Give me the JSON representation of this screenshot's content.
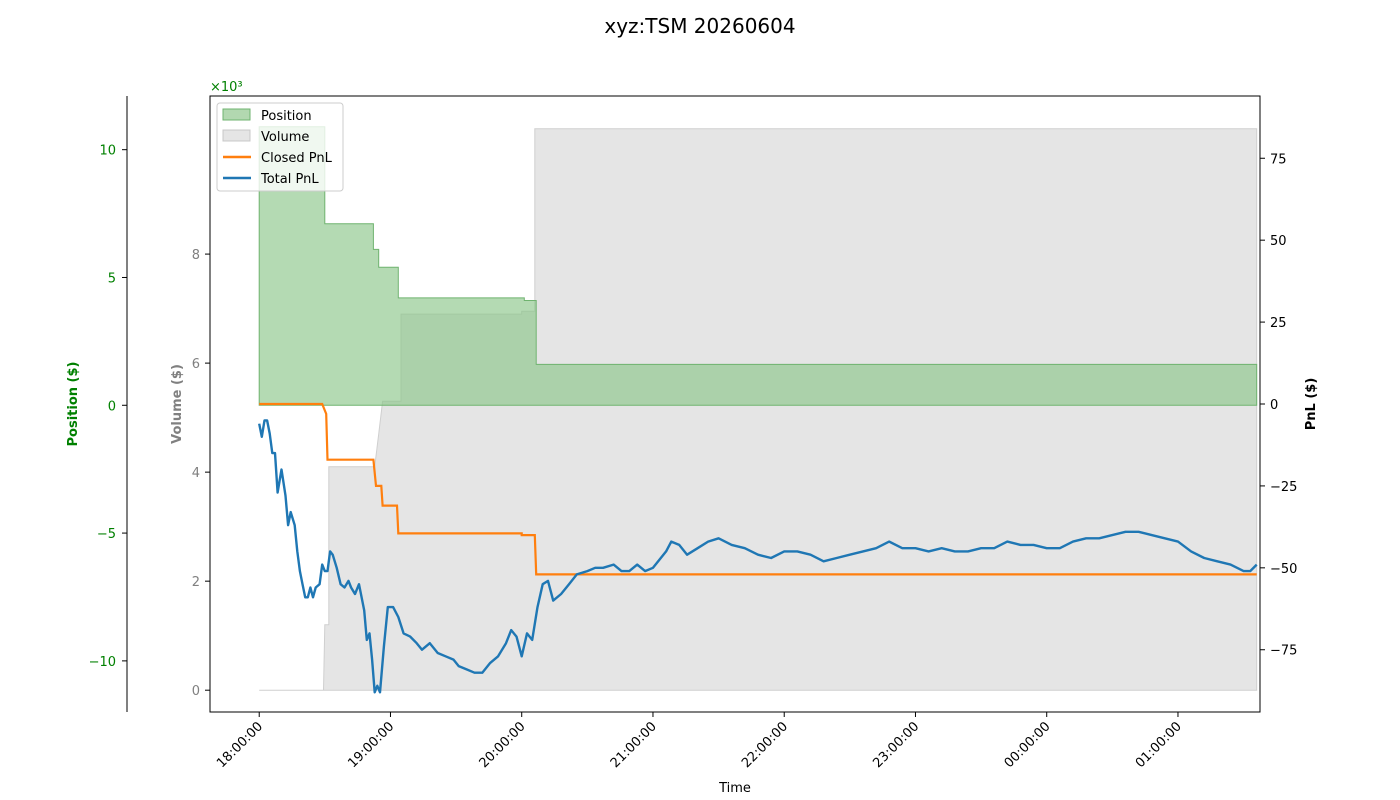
{
  "chart_data": {
    "type": "area",
    "title": "xyz:TSM 20260604",
    "xlabel": "Time",
    "x_ticks": [
      "18:00:00",
      "19:00:00",
      "20:00:00",
      "21:00:00",
      "22:00:00",
      "23:00:00",
      "00:00:00",
      "01:00:00"
    ],
    "x_range_hours": [
      -0.375,
      7.625
    ],
    "axes": {
      "position": {
        "label": "Position ($)",
        "color": "#008000",
        "ylim": [
          -12.0,
          12.1
        ],
        "ticks": [
          -10,
          -5,
          0,
          5,
          10
        ],
        "tick_labels": [
          "−10",
          "−5",
          "0",
          "5",
          "10"
        ]
      },
      "volume": {
        "label": "Volume ($)",
        "color": "#808080",
        "ylim": [
          -0.4,
          10.9
        ],
        "offset_label": "×10³",
        "ticks": [
          0,
          2,
          4,
          6,
          8
        ],
        "tick_labels": [
          "0",
          "2",
          "4",
          "6",
          "8"
        ]
      },
      "pnl": {
        "label": "PnL ($)",
        "color": "#000000",
        "ylim": [
          -94,
          94
        ],
        "ticks": [
          -75,
          -50,
          -25,
          0,
          25,
          50,
          75
        ],
        "tick_labels": [
          "−75",
          "−50",
          "−25",
          "0",
          "25",
          "50",
          "75"
        ]
      }
    },
    "legend": {
      "placement": "top-left",
      "entries": [
        {
          "name": "Position",
          "kind": "patch",
          "color": "#b2d8b0",
          "edge": "#6fb36f"
        },
        {
          "name": "Volume",
          "kind": "patch",
          "color": "#e5e5e5",
          "edge": "#c8c8c8"
        },
        {
          "name": "Closed PnL",
          "kind": "line",
          "color": "#ff7f0e"
        },
        {
          "name": "Total PnL",
          "kind": "line",
          "color": "#1f77b4"
        }
      ]
    },
    "series": [
      {
        "name": "Position",
        "axis": "position",
        "color": "#8cc68a",
        "step": true,
        "points": [
          [
            0.0,
            0.0
          ],
          [
            0.0,
            10.9
          ],
          [
            0.5,
            10.9
          ],
          [
            0.5,
            7.1
          ],
          [
            0.87,
            7.1
          ],
          [
            0.87,
            6.1
          ],
          [
            0.91,
            6.1
          ],
          [
            0.91,
            5.4
          ],
          [
            1.06,
            5.4
          ],
          [
            1.06,
            4.2
          ],
          [
            2.02,
            4.2
          ],
          [
            2.02,
            4.1
          ],
          [
            2.11,
            4.1
          ],
          [
            2.11,
            1.6
          ],
          [
            7.6,
            1.6
          ],
          [
            7.6,
            0.0
          ]
        ]
      },
      {
        "name": "Volume",
        "axis": "volume",
        "color": "#e0e0e0",
        "points": [
          [
            0.0,
            0.0
          ],
          [
            0.49,
            0.0
          ],
          [
            0.5,
            1.2
          ],
          [
            0.53,
            1.2
          ],
          [
            0.53,
            4.1
          ],
          [
            0.88,
            4.1
          ],
          [
            0.91,
            4.7
          ],
          [
            0.94,
            5.3
          ],
          [
            1.08,
            5.3
          ],
          [
            1.08,
            6.9
          ],
          [
            2.0,
            6.9
          ],
          [
            2.0,
            6.95
          ],
          [
            2.1,
            6.95
          ],
          [
            2.1,
            10.3
          ],
          [
            7.6,
            10.3
          ],
          [
            7.6,
            0.0
          ]
        ]
      },
      {
        "name": "Closed PnL",
        "axis": "pnl",
        "color": "#ff7f0e",
        "step": true,
        "points": [
          [
            0.0,
            0.0
          ],
          [
            0.48,
            0.0
          ],
          [
            0.51,
            -3
          ],
          [
            0.52,
            -17
          ],
          [
            0.87,
            -17
          ],
          [
            0.89,
            -25
          ],
          [
            0.93,
            -25
          ],
          [
            0.94,
            -31
          ],
          [
            1.05,
            -31
          ],
          [
            1.06,
            -39.5
          ],
          [
            2.0,
            -39.5
          ],
          [
            2.0,
            -40
          ],
          [
            2.1,
            -40
          ],
          [
            2.11,
            -52
          ],
          [
            7.6,
            -52
          ]
        ]
      },
      {
        "name": "Total PnL",
        "axis": "pnl",
        "color": "#1f77b4",
        "points": [
          [
            0.0,
            -6
          ],
          [
            0.02,
            -10
          ],
          [
            0.04,
            -5
          ],
          [
            0.06,
            -5
          ],
          [
            0.08,
            -9
          ],
          [
            0.1,
            -15
          ],
          [
            0.12,
            -15
          ],
          [
            0.14,
            -27
          ],
          [
            0.17,
            -20
          ],
          [
            0.2,
            -28
          ],
          [
            0.22,
            -37
          ],
          [
            0.24,
            -33
          ],
          [
            0.27,
            -37
          ],
          [
            0.29,
            -45
          ],
          [
            0.31,
            -51
          ],
          [
            0.33,
            -55
          ],
          [
            0.35,
            -59
          ],
          [
            0.37,
            -59
          ],
          [
            0.39,
            -56
          ],
          [
            0.41,
            -59
          ],
          [
            0.43,
            -56
          ],
          [
            0.46,
            -55
          ],
          [
            0.48,
            -49
          ],
          [
            0.5,
            -51
          ],
          [
            0.52,
            -51
          ],
          [
            0.54,
            -45
          ],
          [
            0.56,
            -46
          ],
          [
            0.59,
            -50
          ],
          [
            0.62,
            -55
          ],
          [
            0.65,
            -56
          ],
          [
            0.68,
            -54
          ],
          [
            0.7,
            -56
          ],
          [
            0.73,
            -58
          ],
          [
            0.76,
            -55
          ],
          [
            0.8,
            -63
          ],
          [
            0.82,
            -72
          ],
          [
            0.84,
            -70
          ],
          [
            0.86,
            -78
          ],
          [
            0.88,
            -88
          ],
          [
            0.9,
            -86
          ],
          [
            0.92,
            -88
          ],
          [
            0.95,
            -74
          ],
          [
            0.98,
            -62
          ],
          [
            1.02,
            -62
          ],
          [
            1.06,
            -65
          ],
          [
            1.1,
            -70
          ],
          [
            1.15,
            -71
          ],
          [
            1.2,
            -73
          ],
          [
            1.24,
            -75
          ],
          [
            1.3,
            -73
          ],
          [
            1.36,
            -76
          ],
          [
            1.42,
            -77
          ],
          [
            1.48,
            -78
          ],
          [
            1.52,
            -80
          ],
          [
            1.58,
            -81
          ],
          [
            1.64,
            -82
          ],
          [
            1.7,
            -82
          ],
          [
            1.76,
            -79
          ],
          [
            1.82,
            -77
          ],
          [
            1.88,
            -73
          ],
          [
            1.92,
            -69
          ],
          [
            1.96,
            -71
          ],
          [
            2.0,
            -77
          ],
          [
            2.04,
            -70
          ],
          [
            2.08,
            -72
          ],
          [
            2.12,
            -62
          ],
          [
            2.16,
            -55
          ],
          [
            2.2,
            -54
          ],
          [
            2.24,
            -60
          ],
          [
            2.3,
            -58
          ],
          [
            2.36,
            -55
          ],
          [
            2.42,
            -52
          ],
          [
            2.5,
            -51
          ],
          [
            2.56,
            -50
          ],
          [
            2.62,
            -50
          ],
          [
            2.7,
            -49
          ],
          [
            2.76,
            -51
          ],
          [
            2.82,
            -51
          ],
          [
            2.88,
            -49
          ],
          [
            2.94,
            -51
          ],
          [
            3.0,
            -50
          ],
          [
            3.06,
            -47
          ],
          [
            3.1,
            -45
          ],
          [
            3.14,
            -42
          ],
          [
            3.2,
            -43
          ],
          [
            3.26,
            -46
          ],
          [
            3.34,
            -44
          ],
          [
            3.42,
            -42
          ],
          [
            3.5,
            -41
          ],
          [
            3.6,
            -43
          ],
          [
            3.7,
            -44
          ],
          [
            3.8,
            -46
          ],
          [
            3.9,
            -47
          ],
          [
            4.0,
            -45
          ],
          [
            4.1,
            -45
          ],
          [
            4.2,
            -46
          ],
          [
            4.3,
            -48
          ],
          [
            4.4,
            -47
          ],
          [
            4.5,
            -46
          ],
          [
            4.6,
            -45
          ],
          [
            4.7,
            -44
          ],
          [
            4.8,
            -42
          ],
          [
            4.9,
            -44
          ],
          [
            5.0,
            -44
          ],
          [
            5.1,
            -45
          ],
          [
            5.2,
            -44
          ],
          [
            5.3,
            -45
          ],
          [
            5.4,
            -45
          ],
          [
            5.5,
            -44
          ],
          [
            5.6,
            -44
          ],
          [
            5.7,
            -42
          ],
          [
            5.8,
            -43
          ],
          [
            5.9,
            -43
          ],
          [
            6.0,
            -44
          ],
          [
            6.1,
            -44
          ],
          [
            6.2,
            -42
          ],
          [
            6.3,
            -41
          ],
          [
            6.4,
            -41
          ],
          [
            6.5,
            -40
          ],
          [
            6.6,
            -39
          ],
          [
            6.7,
            -39
          ],
          [
            6.8,
            -40
          ],
          [
            6.9,
            -41
          ],
          [
            7.0,
            -42
          ],
          [
            7.1,
            -45
          ],
          [
            7.2,
            -47
          ],
          [
            7.3,
            -48
          ],
          [
            7.4,
            -49
          ],
          [
            7.5,
            -51
          ],
          [
            7.55,
            -51
          ],
          [
            7.6,
            -49
          ]
        ]
      }
    ]
  }
}
